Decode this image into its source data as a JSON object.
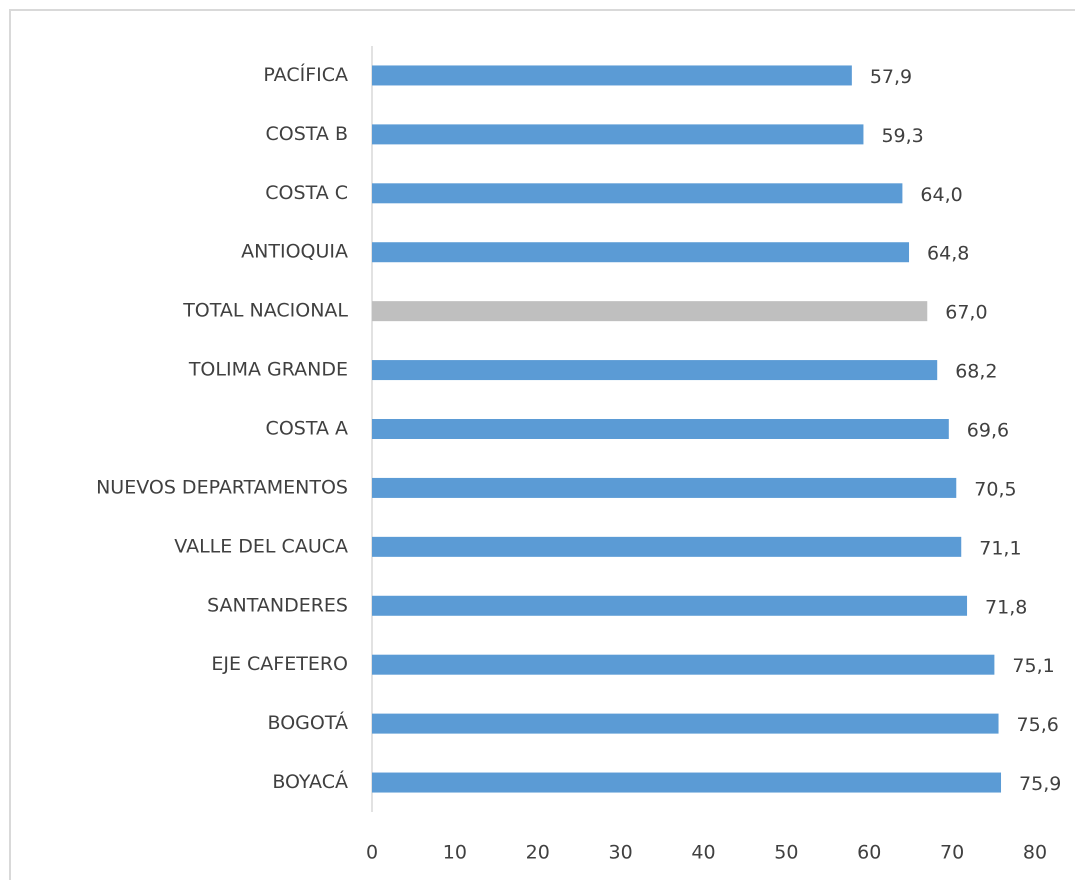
{
  "chart_data": {
    "type": "barh",
    "categories": [
      "PACÍFICA",
      "COSTA B",
      "COSTA C",
      "ANTIOQUIA",
      "TOTAL NACIONAL",
      "TOLIMA GRANDE",
      "COSTA A",
      "NUEVOS DEPARTAMENTOS",
      "VALLE DEL CAUCA",
      "SANTANDERES",
      "EJE CAFETERO",
      "BOGOTÁ",
      "BOYACÁ"
    ],
    "values": [
      57.9,
      59.3,
      64.0,
      64.8,
      67.0,
      68.2,
      69.6,
      70.5,
      71.1,
      71.8,
      75.1,
      75.6,
      75.9
    ],
    "value_labels": [
      "57,9",
      "59,3",
      "64,0",
      "64,8",
      "67,0",
      "68,2",
      "69,6",
      "70,5",
      "71,1",
      "71,8",
      "75,1",
      "75,6",
      "75,9"
    ],
    "colors": [
      "#5b9bd5",
      "#5b9bd5",
      "#5b9bd5",
      "#5b9bd5",
      "#bfbfbf",
      "#5b9bd5",
      "#5b9bd5",
      "#5b9bd5",
      "#5b9bd5",
      "#5b9bd5",
      "#5b9bd5",
      "#5b9bd5",
      "#5b9bd5"
    ],
    "xlim": [
      0,
      80
    ],
    "xticks": [
      0,
      10,
      20,
      30,
      40,
      50,
      60,
      70,
      80
    ],
    "grid": false
  }
}
